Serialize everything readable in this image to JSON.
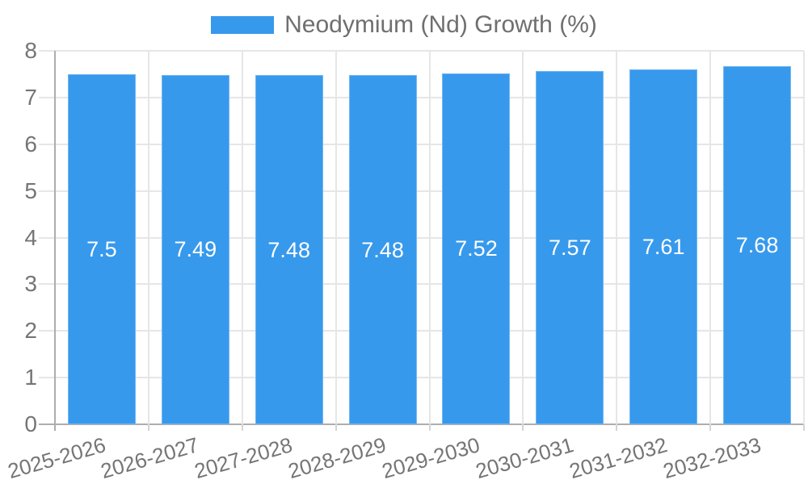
{
  "chart_data": {
    "type": "bar",
    "title": "",
    "legend": {
      "label": "Neodymium (Nd) Growth (%)",
      "position": "top"
    },
    "categories": [
      "2025-2026",
      "2026-2027",
      "2027-2028",
      "2028-2029",
      "2029-2030",
      "2030-2031",
      "2031-2032",
      "2032-2033"
    ],
    "values": [
      7.5,
      7.49,
      7.48,
      7.48,
      7.52,
      7.57,
      7.61,
      7.68
    ],
    "value_labels": [
      "7.5",
      "7.49",
      "7.48",
      "7.48",
      "7.52",
      "7.57",
      "7.61",
      "7.68"
    ],
    "xlabel": "",
    "ylabel": "",
    "ylim": [
      0,
      8
    ],
    "yticks": [
      0,
      1,
      2,
      3,
      4,
      5,
      6,
      7,
      8
    ],
    "grid": true,
    "bar_labels_inside": true,
    "colors": {
      "bar": "#3799EC",
      "bar_value_label": "#FFFFFF",
      "axis_text": "#757575",
      "grid_line": "#E6E6E6",
      "axis_line": "#ADADAD",
      "minor_tick": "#D4D4D4",
      "legend_text": "#6F6F6F",
      "background": "#FFFFFF"
    }
  }
}
